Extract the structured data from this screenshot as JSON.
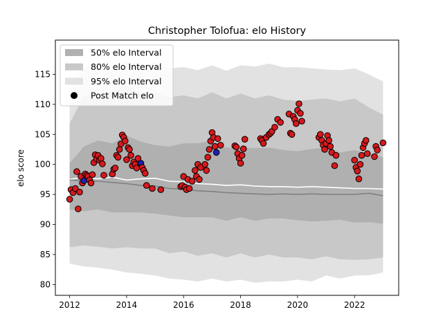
{
  "chart_data": {
    "type": "scatter",
    "title": "Christopher Tolofua: elo History",
    "xlabel": "",
    "ylabel": "elo score",
    "xlim": [
      2011.5,
      2023.55
    ],
    "ylim": [
      78.2,
      120.7
    ],
    "x_ticks": [
      2012,
      2014,
      2016,
      2018,
      2020,
      2022
    ],
    "y_ticks": [
      80,
      85,
      90,
      95,
      100,
      105,
      110,
      115
    ],
    "legend_position": "upper-left",
    "legend": [
      {
        "label": "50% elo Interval",
        "color": "#b0b0b0"
      },
      {
        "label": "80% elo Interval",
        "color": "#c8c8c8"
      },
      {
        "label": "95% elo Interval",
        "color": "#e2e2e2"
      },
      {
        "label": "Post Match elo",
        "color": "#000000"
      }
    ],
    "intervals": {
      "x": [
        2012.0,
        2012.5,
        2013.0,
        2013.5,
        2014.0,
        2014.5,
        2015.0,
        2015.5,
        2016.0,
        2016.5,
        2017.0,
        2017.5,
        2018.0,
        2018.5,
        2019.0,
        2019.5,
        2020.0,
        2020.5,
        2021.0,
        2021.5,
        2022.0,
        2022.5,
        2023.0
      ],
      "p95_upper": [
        112.0,
        116.3,
        116.0,
        115.6,
        117.2,
        116.5,
        117.0,
        116.0,
        116.2,
        115.7,
        116.5,
        115.6,
        116.5,
        116.3,
        116.8,
        116.2,
        116.2,
        116.0,
        115.8,
        115.7,
        116.0,
        115.0,
        113.8
      ],
      "p80_upper": [
        106.8,
        111.5,
        111.8,
        112.0,
        113.2,
        111.8,
        112.0,
        111.2,
        111.5,
        111.0,
        112.0,
        111.0,
        111.8,
        111.0,
        111.5,
        110.8,
        110.6,
        110.8,
        111.0,
        110.5,
        111.0,
        109.5,
        108.3
      ],
      "p50_upper": [
        100.2,
        103.0,
        104.0,
        103.5,
        104.8,
        103.8,
        103.2,
        103.0,
        103.5,
        103.5,
        104.0,
        102.8,
        102.8,
        102.7,
        102.8,
        102.4,
        102.2,
        102.6,
        102.8,
        102.0,
        102.4,
        101.8,
        101.2
      ],
      "p50_lower": [
        92.5,
        92.2,
        92.5,
        92.0,
        92.0,
        92.0,
        91.8,
        91.5,
        91.2,
        91.2,
        91.2,
        90.6,
        91.2,
        90.6,
        91.0,
        91.0,
        90.7,
        90.5,
        90.6,
        90.8,
        90.3,
        90.4,
        90.1
      ],
      "p80_lower": [
        86.2,
        86.5,
        86.3,
        86.0,
        86.2,
        86.0,
        86.0,
        85.2,
        85.5,
        84.8,
        85.2,
        84.5,
        85.2,
        84.5,
        85.0,
        84.5,
        84.5,
        84.2,
        84.7,
        84.2,
        84.1,
        84.2,
        84.5
      ],
      "p95_lower": [
        83.5,
        83.0,
        82.8,
        82.5,
        82.0,
        81.8,
        81.5,
        81.0,
        80.8,
        80.5,
        81.0,
        80.5,
        80.8,
        80.3,
        80.5,
        80.5,
        80.8,
        80.5,
        81.5,
        81.0,
        81.5,
        81.5,
        82.0
      ]
    },
    "series": [
      {
        "name": "",
        "color": "#ffffff",
        "x": [
          2012.0,
          2012.5,
          2013.0,
          2013.5,
          2014.0,
          2014.5,
          2015.0,
          2015.5,
          2016.0,
          2016.5,
          2017.0,
          2017.5,
          2018.0,
          2018.5,
          2019.0,
          2019.5,
          2020.0,
          2020.5,
          2021.0,
          2021.5,
          2022.0,
          2022.5,
          2023.0
        ],
        "y": [
          97.5,
          97.9,
          97.6,
          97.9,
          97.4,
          97.6,
          97.7,
          97.2,
          97.1,
          96.8,
          96.7,
          96.5,
          96.6,
          96.4,
          96.3,
          96.3,
          96.2,
          96.3,
          96.2,
          96.1,
          96.0,
          96.0,
          95.9
        ]
      },
      {
        "name": "",
        "color": "#808080",
        "x": [
          2012.0,
          2012.5,
          2013.0,
          2013.5,
          2014.0,
          2014.5,
          2015.0,
          2015.5,
          2016.0,
          2016.5,
          2017.0,
          2017.5,
          2018.0,
          2018.5,
          2019.0,
          2019.5,
          2020.0,
          2020.5,
          2021.0,
          2021.5,
          2022.0,
          2022.5,
          2023.0
        ],
        "y": [
          97.4,
          97.3,
          97.2,
          97.0,
          96.8,
          96.5,
          96.4,
          96.0,
          95.9,
          95.6,
          95.5,
          95.3,
          95.2,
          95.1,
          95.0,
          95.1,
          95.0,
          95.1,
          95.0,
          95.0,
          95.0,
          95.2,
          94.8
        ]
      }
    ],
    "points": {
      "name": "Post Match elo",
      "face_color": "#d7191c",
      "alt_face_color": "#1f1fb0",
      "edge_color": "#000000",
      "x": [
        2012.0,
        2012.05,
        2012.12,
        2012.2,
        2012.25,
        2012.3,
        2012.35,
        2012.4,
        2012.45,
        2012.5,
        2012.55,
        2012.6,
        2012.65,
        2012.7,
        2012.75,
        2012.8,
        2012.85,
        2012.9,
        2012.95,
        2013.0,
        2013.05,
        2013.1,
        2013.15,
        2013.2,
        2013.5,
        2013.55,
        2013.6,
        2013.65,
        2013.7,
        2013.75,
        2013.8,
        2013.85,
        2013.9,
        2013.95,
        2014.0,
        2014.05,
        2014.1,
        2014.15,
        2014.2,
        2014.25,
        2014.3,
        2014.35,
        2014.4,
        2014.5,
        2014.55,
        2014.6,
        2014.65,
        2014.7,
        2014.9,
        2015.2,
        2015.9,
        2015.95,
        2016.0,
        2016.05,
        2016.1,
        2016.15,
        2016.2,
        2016.3,
        2016.4,
        2016.45,
        2016.5,
        2016.55,
        2016.6,
        2016.75,
        2016.8,
        2016.85,
        2016.9,
        2016.95,
        2017.0,
        2017.05,
        2017.1,
        2017.15,
        2017.2,
        2017.3,
        2017.8,
        2017.85,
        2017.9,
        2017.95,
        2018.0,
        2018.05,
        2018.1,
        2018.15,
        2018.7,
        2018.75,
        2018.8,
        2018.9,
        2019.0,
        2019.05,
        2019.1,
        2019.2,
        2019.3,
        2019.4,
        2019.7,
        2019.75,
        2019.8,
        2019.85,
        2019.9,
        2019.95,
        2020.0,
        2020.05,
        2020.1,
        2020.15,
        2020.75,
        2020.8,
        2020.85,
        2020.9,
        2020.95,
        2021.0,
        2021.05,
        2021.1,
        2021.15,
        2021.2,
        2021.3,
        2021.35,
        2022.0,
        2022.05,
        2022.1,
        2022.15,
        2022.2,
        2022.25,
        2022.3,
        2022.35,
        2022.4,
        2022.45,
        2022.7,
        2022.75,
        2022.8,
        2023.0
      ],
      "y": [
        94.2,
        95.8,
        95.3,
        96.0,
        98.8,
        92.6,
        95.4,
        98.0,
        96.9,
        97.3,
        98.4,
        98.2,
        98.0,
        97.4,
        96.9,
        98.3,
        100.3,
        101.6,
        100.9,
        101.5,
        100.7,
        101.0,
        100.1,
        98.2,
        98.4,
        99.2,
        99.4,
        101.5,
        101.2,
        102.5,
        103.4,
        104.9,
        104.5,
        103.9,
        100.8,
        102.8,
        102.5,
        101.5,
        99.8,
        100.4,
        100.0,
        99.4,
        101.0,
        100.2,
        99.5,
        99.0,
        98.5,
        96.5,
        96.0,
        95.8,
        96.3,
        96.5,
        98.0,
        96.2,
        95.8,
        97.5,
        96.0,
        97.2,
        99.0,
        98.0,
        100.0,
        97.5,
        99.5,
        100.0,
        99.0,
        101.2,
        102.5,
        103.9,
        105.3,
        104.5,
        103.0,
        102.0,
        104.3,
        103.2,
        103.1,
        102.9,
        101.8,
        101.0,
        100.2,
        101.5,
        102.6,
        104.2,
        104.3,
        104.0,
        103.5,
        104.5,
        105.0,
        105.2,
        105.5,
        106.2,
        107.5,
        107.0,
        108.4,
        105.2,
        105.0,
        108.0,
        107.5,
        106.8,
        109.0,
        110.1,
        108.5,
        107.2,
        104.5,
        105.0,
        104.0,
        103.2,
        102.5,
        103.5,
        104.8,
        104.0,
        103.0,
        102.0,
        99.8,
        101.5,
        100.7,
        99.5,
        98.9,
        97.6,
        100.0,
        101.5,
        102.8,
        103.5,
        104.0,
        101.8,
        101.3,
        103.0,
        102.4,
        103.6
      ],
      "alt_indices": [
        9,
        43,
        71
      ]
    }
  }
}
